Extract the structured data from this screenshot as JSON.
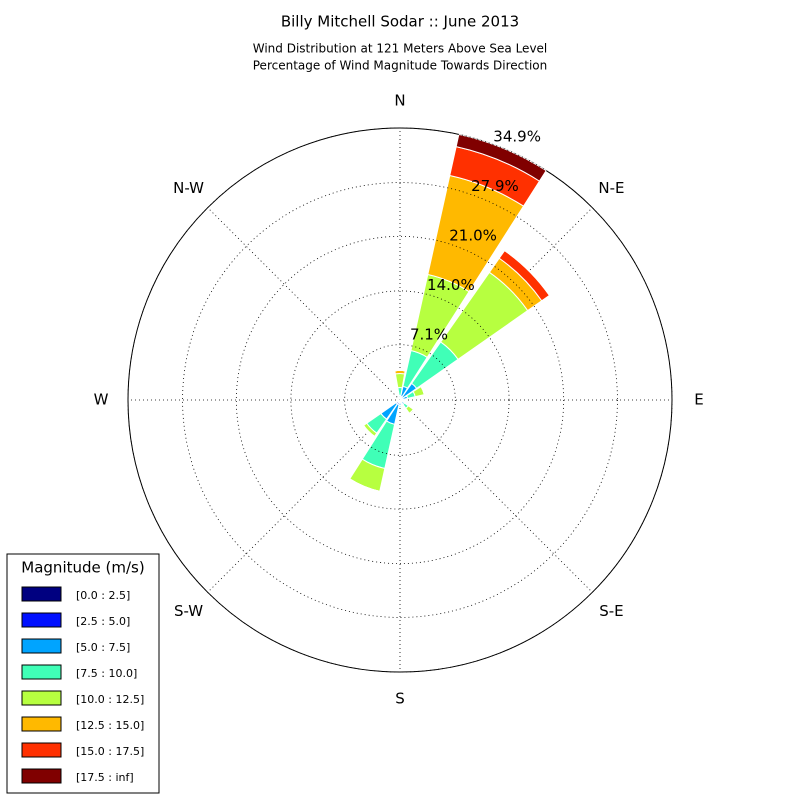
{
  "chart_data": {
    "type": "windrose",
    "title": "Billy Mitchell Sodar :: June 2013",
    "subtitle": [
      "Wind Distribution at 121 Meters Above Sea Level",
      "Percentage of Wind Magnitude Towards Direction"
    ],
    "direction_labels": [
      "N",
      "N-E",
      "E",
      "S-E",
      "S",
      "S-W",
      "W",
      "N-W"
    ],
    "x": [
      0,
      22.5,
      45,
      67.5,
      90,
      112.5,
      135,
      157.5,
      180,
      202.5,
      225,
      247.5,
      270,
      292.5,
      315,
      337.5
    ],
    "rlim": [
      0,
      34.9
    ],
    "rticks": [
      {
        "value": 7.1,
        "label": "7.1%"
      },
      {
        "value": 14.0,
        "label": "14.0%"
      },
      {
        "value": 21.0,
        "label": "21.0%"
      },
      {
        "value": 27.9,
        "label": "27.9%"
      },
      {
        "value": 34.9,
        "label": "34.9%"
      }
    ],
    "grid": true,
    "legend_title": "Magnitude (m/s)",
    "legend_position": "lower left",
    "series": [
      {
        "name": "[0.0 : 2.5]",
        "color": "#000080",
        "values": [
          0,
          0.2,
          0.1,
          0,
          0,
          0,
          0,
          0,
          0,
          0.1,
          0.1,
          0,
          0,
          0,
          0,
          0
        ]
      },
      {
        "name": "[2.5 : 5.0]",
        "color": "#0010ff",
        "values": [
          0.1,
          0.3,
          0.3,
          0.2,
          0.1,
          0.1,
          0.2,
          0.1,
          0.2,
          0.5,
          0.5,
          0,
          0,
          0,
          0,
          0
        ]
      },
      {
        "name": "[5.0 : 7.5]",
        "color": "#00a4ff",
        "values": [
          0.5,
          1.3,
          2.2,
          0.8,
          0.3,
          0.2,
          0.5,
          0.2,
          0.5,
          2.6,
          2.4,
          0,
          0,
          0,
          0,
          0
        ]
      },
      {
        "name": "[7.5 : 10.0]",
        "color": "#40ffb7",
        "values": [
          1.0,
          4.7,
          6.5,
          1.0,
          0.2,
          0.2,
          0.6,
          0.1,
          0.2,
          5.8,
          2.2,
          0,
          0,
          0,
          0,
          0
        ]
      },
      {
        "name": "[10.0 : 12.5]",
        "color": "#b7ff40",
        "values": [
          1.8,
          10.0,
          10.9,
          1.2,
          0.1,
          0.1,
          0.8,
          0,
          0,
          3.0,
          0.5,
          0,
          0,
          0,
          0,
          0
        ]
      },
      {
        "name": "[12.5 : 15.0]",
        "color": "#ffb900",
        "values": [
          0.4,
          13.0,
          2.2,
          0,
          0,
          0,
          0,
          0,
          0,
          0,
          0,
          0,
          0,
          0,
          0,
          0
        ]
      },
      {
        "name": "[15.0 : 17.5]",
        "color": "#ff3000",
        "values": [
          0,
          3.8,
          1.2,
          0,
          0,
          0,
          0,
          0,
          0,
          0,
          0,
          0,
          0,
          0,
          0,
          0
        ]
      },
      {
        "name": "[17.5 : inf]",
        "color": "#800000",
        "values": [
          0,
          1.6,
          0,
          0,
          0,
          0,
          0,
          0,
          0,
          0,
          0,
          0,
          0,
          0,
          0,
          0
        ]
      }
    ]
  }
}
